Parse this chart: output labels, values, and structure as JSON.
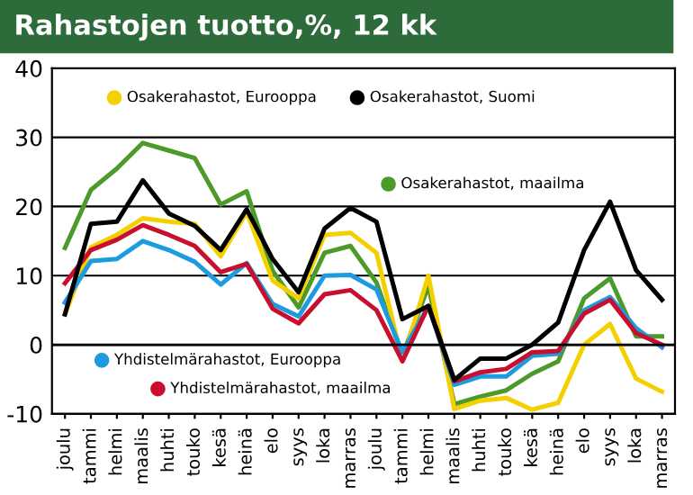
{
  "chart_data": {
    "type": "line",
    "title": "Rahastojen tuotto,%, 12 kk",
    "categories": [
      "joulu",
      "tammi",
      "helmi",
      "maalis",
      "huhti",
      "touko",
      "kesä",
      "heinä",
      "elo",
      "syys",
      "loka",
      "marras",
      "joulu",
      "tammi",
      "helmi",
      "maalis",
      "huhti",
      "touko",
      "kesä",
      "heinä",
      "elo",
      "syys",
      "loka",
      "marras"
    ],
    "series": [
      {
        "name": "Osakerahastot, maailma",
        "color": "#4c9a2a",
        "values": [
          14,
          22.4,
          25.5,
          29.2,
          28.1,
          27,
          20.3,
          22.2,
          10.7,
          5.4,
          13.3,
          14.3,
          9,
          -1.6,
          8.5,
          -8.6,
          -7.5,
          -6.6,
          -4.2,
          -2.4,
          6.7,
          9.6,
          1.2,
          1.2
        ]
      },
      {
        "name": "Osakerahastot, Eurooppa",
        "color": "#f5d000",
        "values": [
          4.4,
          14.1,
          15.9,
          18.3,
          17.8,
          17.5,
          12.8,
          19.2,
          9.3,
          6.7,
          15.9,
          16.2,
          13.3,
          -2.4,
          10,
          -9.3,
          -8.1,
          -7.7,
          -9.4,
          -8.4,
          0,
          3,
          -4.9,
          -6.8
        ]
      },
      {
        "name": "Yhdistelmärahastot, Eurooppa",
        "color": "#1e9be0",
        "values": [
          6.1,
          12.1,
          12.4,
          15,
          13.7,
          12,
          8.7,
          11.8,
          5.9,
          4.1,
          10,
          10.1,
          8,
          -1.1,
          5.6,
          -5.8,
          -4.6,
          -4.6,
          -1.6,
          -1.3,
          5,
          6.9,
          2.4,
          -0.4
        ]
      },
      {
        "name": "Yhdistelmärahastot, maailma",
        "color": "#c8102e",
        "values": [
          8.9,
          13.7,
          15.2,
          17.3,
          15.9,
          14.3,
          10.5,
          11.7,
          5.2,
          3.1,
          7.3,
          7.9,
          5,
          -2.4,
          5.6,
          -5.3,
          -4,
          -3.5,
          -1.1,
          -0.9,
          4.5,
          6.5,
          1.7,
          0
        ]
      },
      {
        "name": "Osakerahastot, Suomi",
        "color": "#000000",
        "values": [
          4.4,
          17.5,
          17.8,
          23.8,
          19,
          17.2,
          13.7,
          19.6,
          12.4,
          7.6,
          16.8,
          19.8,
          17.8,
          3.7,
          5.6,
          -5.1,
          -2,
          -2,
          0,
          3.2,
          13.7,
          20.7,
          10.8,
          6.5
        ]
      }
    ],
    "ylim": [
      -10,
      40
    ],
    "yticks": [
      -10,
      0,
      10,
      20,
      30,
      40
    ],
    "grid": "y",
    "legend": "left",
    "marker": "none",
    "line_style": "solid"
  }
}
